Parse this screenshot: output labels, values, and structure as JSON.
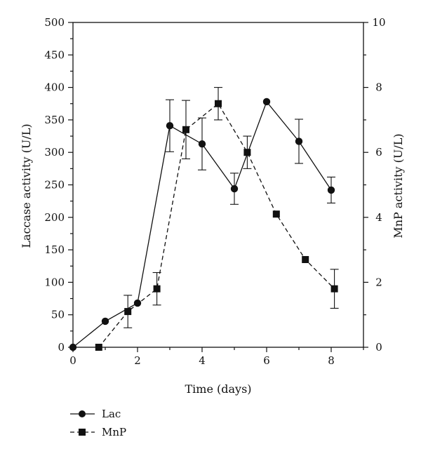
{
  "chart_data": {
    "type": "line",
    "xlabel": "Time (days)",
    "ylabel_left": "Laccase activity (U/L)",
    "ylabel_right": "MnP activity (U/L)",
    "xlim": [
      0,
      9
    ],
    "ylim_left": [
      0,
      500
    ],
    "ylim_right": [
      0,
      10
    ],
    "x_ticks": [
      0,
      2,
      4,
      6,
      8
    ],
    "y_ticks_left": [
      0,
      50,
      100,
      150,
      200,
      250,
      300,
      350,
      400,
      450,
      500
    ],
    "y_ticks_right": [
      0,
      2,
      4,
      6,
      8,
      10
    ],
    "grid": false,
    "legend_position": "bottom-left",
    "series": [
      {
        "name": "Lac",
        "axis": "left",
        "marker": "circle",
        "line_style": "solid",
        "x": [
          0,
          1,
          2,
          3,
          4,
          5,
          6,
          7,
          8
        ],
        "y": [
          0,
          40,
          68,
          341,
          313,
          244,
          378,
          317,
          242
        ],
        "error": [
          0,
          0,
          0,
          40,
          40,
          24,
          0,
          34,
          20
        ]
      },
      {
        "name": "MnP",
        "axis": "right",
        "marker": "square",
        "line_style": "dashed",
        "x": [
          0.8,
          1.7,
          2.6,
          3.5,
          4.5,
          5.4,
          6.3,
          7.2,
          8.1
        ],
        "y": [
          0,
          1.1,
          1.8,
          6.7,
          7.5,
          6.0,
          4.1,
          2.7,
          1.8
        ],
        "error": [
          0,
          0.5,
          0.5,
          0.9,
          0.5,
          0.5,
          0,
          0,
          0.6
        ]
      }
    ]
  }
}
